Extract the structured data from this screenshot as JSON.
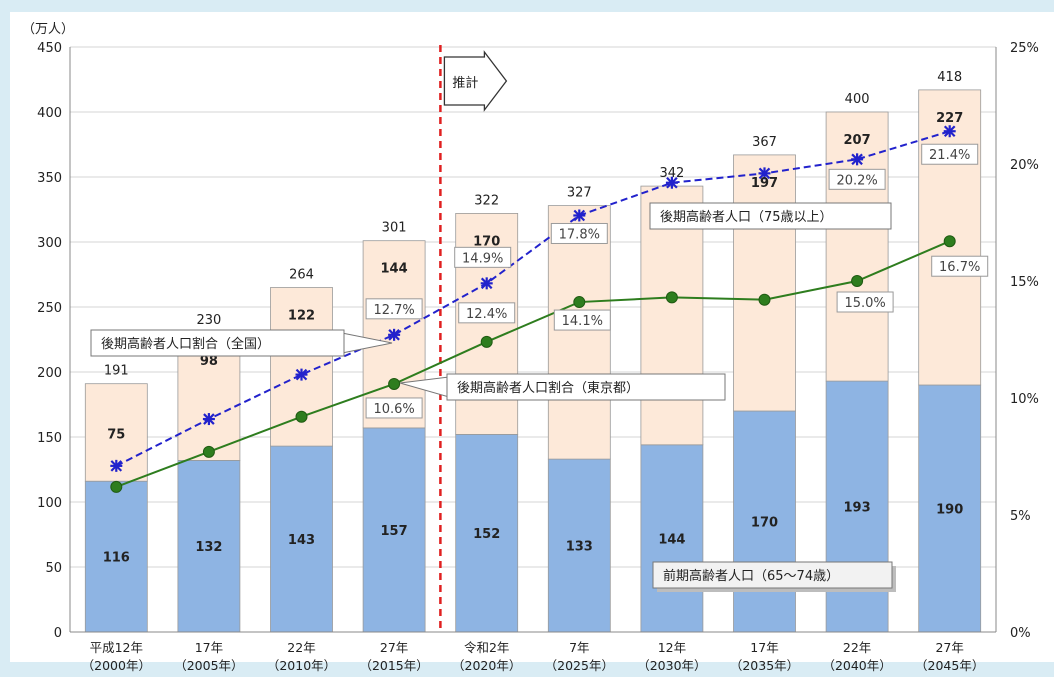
{
  "chart_data": {
    "type": "bar",
    "stacked": true,
    "y_unit": "（万人）",
    "ylim": [
      0,
      450
    ],
    "y_ticks": [
      0,
      50,
      100,
      150,
      200,
      250,
      300,
      350,
      400,
      450
    ],
    "y2lim": [
      0,
      25
    ],
    "y2_ticks": [
      "0%",
      "5%",
      "10%",
      "15%",
      "20%",
      "25%"
    ],
    "categories": [
      [
        "平成12年",
        "（2000年）"
      ],
      [
        "17年",
        "（2005年）"
      ],
      [
        "22年",
        "（2010年）"
      ],
      [
        "27年",
        "（2015年）"
      ],
      [
        "令和2年",
        "（2020年）"
      ],
      [
        "7年",
        "（2025年）"
      ],
      [
        "12年",
        "（2030年）"
      ],
      [
        "17年",
        "（2035年）"
      ],
      [
        "22年",
        "（2040年）"
      ],
      [
        "27年",
        "（2045年）"
      ]
    ],
    "totals": [
      191,
      230,
      264,
      301,
      322,
      327,
      342,
      367,
      400,
      418
    ],
    "series": [
      {
        "name": "前期高齢者人口（65～74歳）",
        "color": "#8eb4e3",
        "values": [
          116,
          132,
          143,
          157,
          152,
          133,
          144,
          170,
          193,
          190
        ]
      },
      {
        "name": "後期高齢者人口（75歳以上）",
        "color": "#fde9d9",
        "values": [
          75,
          98,
          122,
          144,
          170,
          195,
          199,
          197,
          207,
          227
        ]
      }
    ],
    "lines": [
      {
        "name": "後期高齢者人口割合（全国）",
        "color": "#2222cc",
        "style": "dashed",
        "marker": "asterisk",
        "values": [
          7.1,
          9.1,
          11.0,
          12.7,
          14.9,
          17.8,
          19.2,
          19.6,
          20.2,
          21.4
        ],
        "labels": [
          "",
          "",
          "",
          "12.7%",
          "14.9%",
          "17.8%",
          "",
          "",
          "20.2%",
          "21.4%"
        ]
      },
      {
        "name": "後期高齢者人口割合（東京都）",
        "color": "#2e7d1e",
        "style": "solid",
        "marker": "circle",
        "values": [
          6.2,
          7.7,
          9.2,
          10.6,
          12.4,
          14.1,
          14.3,
          14.2,
          15.0,
          16.7
        ],
        "labels": [
          "",
          "",
          "",
          "10.6%",
          "12.4%",
          "14.1%",
          "",
          "",
          "15.0%",
          "16.7%"
        ]
      }
    ],
    "annotation": {
      "text": "推計"
    },
    "grid": true
  }
}
